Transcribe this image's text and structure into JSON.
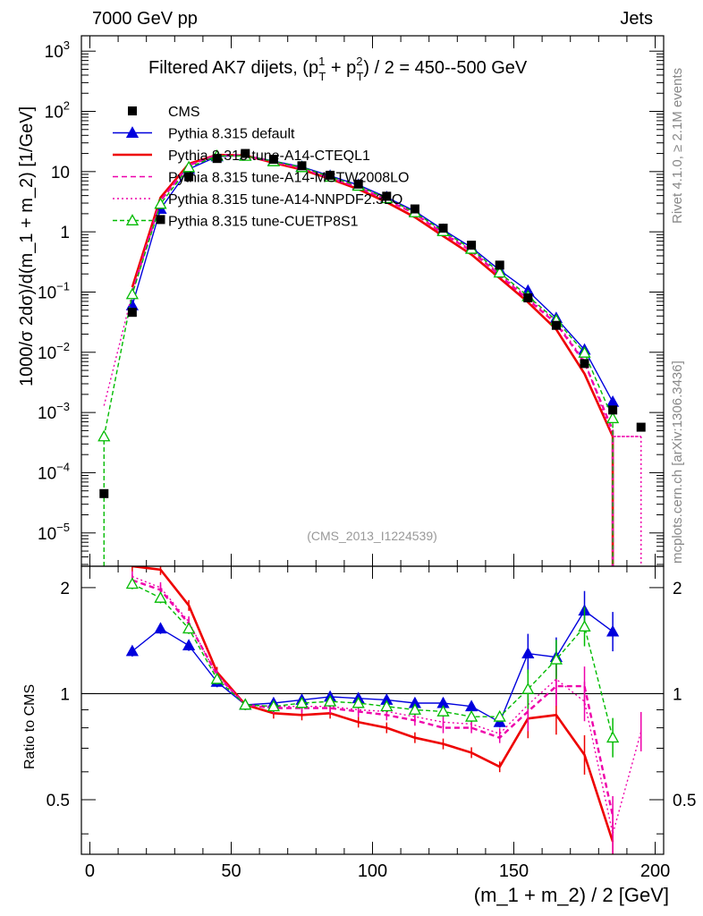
{
  "header": {
    "left": "7000 GeV pp",
    "right": "Jets"
  },
  "side_labels": {
    "top": "Rivet 4.1.0, ≥ 2.1M events",
    "bottom": "mcplots.cern.ch [arXiv:1306.3436]"
  },
  "watermark": "(CMS_2013_I1224539)",
  "chart_data": {
    "type": "line",
    "title": "Filtered AK7 dijets, (p_T^1 + p_T^2) / 2 = 450--500 GeV",
    "title_parts": {
      "pre": "Filtered AK7 dijets, (p",
      "sub1": "T",
      "sup1": "1",
      "mid": " + p",
      "sub2": "T",
      "sup2": "2",
      "post": ") / 2 = 450--500 GeV"
    },
    "xlabel": "(m_1 + m_2) / 2 [GeV]",
    "ylabel": "1000/σ   2dσ)/d(m_1 + m_2) [1/GeV]",
    "ratio_ylabel": "Ratio to CMS",
    "xlim": [
      -3,
      203
    ],
    "ylim_log": [
      2.8e-06,
      1800.0
    ],
    "ratio_ylim": [
      0.35,
      2.3
    ],
    "x_ticks": [
      0,
      50,
      100,
      150,
      200
    ],
    "x_tick_labels": [
      "0",
      "50",
      "100",
      "150",
      "200"
    ],
    "y_ticks": [
      {
        "v": 1000.0,
        "base": "10",
        "exp": "3"
      },
      {
        "v": 100.0,
        "base": "10",
        "exp": "2"
      },
      {
        "v": 10,
        "base": "10",
        "exp": ""
      },
      {
        "v": 1,
        "base": "1",
        "exp": ""
      },
      {
        "v": 0.1,
        "base": "10",
        "exp": "−1"
      },
      {
        "v": 0.01,
        "base": "10",
        "exp": "−2"
      },
      {
        "v": 0.001,
        "base": "10",
        "exp": "−3"
      },
      {
        "v": 0.0001,
        "base": "10",
        "exp": "−4"
      },
      {
        "v": 1e-05,
        "base": "10",
        "exp": "−5"
      }
    ],
    "ratio_ticks": [
      0.5,
      1,
      2
    ],
    "ratio_tick_labels": [
      "0.5",
      "1",
      "2"
    ],
    "x": [
      5,
      15,
      25,
      35,
      45,
      55,
      65,
      75,
      85,
      95,
      105,
      115,
      125,
      135,
      145,
      155,
      165,
      175,
      185,
      195
    ],
    "data": {
      "name": "CMS",
      "values": [
        4.5e-05,
        0.046,
        1.6,
        8.2,
        16.5,
        20,
        16,
        12.5,
        8.7,
        6.2,
        3.9,
        2.4,
        1.15,
        0.6,
        0.28,
        0.08,
        0.028,
        0.0065,
        0.0011,
        0.00057
      ]
    },
    "series": [
      {
        "name": "Pythia 8.315 default",
        "color": "#0000dd",
        "dash": "",
        "marker": "triangle-filled",
        "values": [
          null,
          0.06,
          2.4,
          11.0,
          17.8,
          18.5,
          15.0,
          12.0,
          8.5,
          6.0,
          3.75,
          2.2,
          1.08,
          0.55,
          0.23,
          0.105,
          0.037,
          0.011,
          0.0015,
          null
        ],
        "ratio_x": [
          15,
          25,
          35,
          45,
          55,
          65,
          75,
          85,
          95,
          105,
          115,
          125,
          135,
          145,
          155,
          165,
          175,
          185
        ],
        "ratio": [
          1.32,
          1.53,
          1.37,
          1.08,
          0.93,
          0.94,
          0.96,
          0.98,
          0.97,
          0.96,
          0.94,
          0.94,
          0.92,
          0.83,
          1.3,
          1.27,
          1.72,
          1.5
        ]
      },
      {
        "name": "Pythia 8.315 tune-A14-CTEQL1",
        "color": "#ee0000",
        "dash": "",
        "marker": "none",
        "values": [
          null,
          0.12,
          3.7,
          13.5,
          19.0,
          18.5,
          14.0,
          10.8,
          7.6,
          5.1,
          3.1,
          1.75,
          0.85,
          0.42,
          0.17,
          0.068,
          0.024,
          0.0044,
          0.0004,
          null
        ],
        "ratio_x": [
          15,
          25,
          35,
          45,
          55,
          65,
          75,
          85,
          95,
          105,
          115,
          125,
          135,
          145,
          155,
          165,
          175,
          185
        ],
        "ratio": [
          2.6,
          2.25,
          1.78,
          1.15,
          0.93,
          0.88,
          0.87,
          0.88,
          0.83,
          0.8,
          0.75,
          0.72,
          0.68,
          0.62,
          0.85,
          0.87,
          0.67,
          0.38
        ]
      },
      {
        "name": "Pythia 8.315 tune-A14-MSTW2008LO",
        "color": "#ee00aa",
        "dash": "6,4",
        "marker": "none",
        "values": [
          null,
          0.1,
          3.3,
          12.8,
          18.8,
          18.5,
          14.5,
          11.3,
          7.8,
          5.5,
          3.4,
          2.0,
          0.93,
          0.48,
          0.19,
          0.075,
          0.03,
          0.0068,
          0.0005,
          null
        ],
        "ratio_x": [
          15,
          25,
          35,
          45,
          55,
          65,
          75,
          85,
          95,
          105,
          115,
          125,
          135,
          145,
          155,
          165,
          175,
          185
        ],
        "ratio": [
          2.1,
          1.97,
          1.58,
          1.13,
          0.93,
          0.91,
          0.91,
          0.91,
          0.89,
          0.87,
          0.84,
          0.8,
          0.8,
          0.75,
          0.89,
          1.05,
          1.05,
          0.45
        ]
      },
      {
        "name": "Pythia 8.315 tune-A14-NNPDF2.3LO",
        "color": "#ee00aa",
        "dash": "2,3",
        "marker": "none",
        "values": [
          0.0013,
          0.095,
          3.2,
          12.6,
          18.9,
          18.4,
          14.6,
          11.4,
          8.0,
          5.6,
          3.5,
          2.05,
          0.97,
          0.5,
          0.2,
          0.08,
          0.032,
          0.0072,
          0.0004,
          0.0004
        ],
        "ratio_x": [
          15,
          25,
          35,
          45,
          55,
          65,
          75,
          85,
          95,
          105,
          115,
          125,
          135,
          145,
          155,
          165,
          175,
          185,
          195
        ],
        "ratio": [
          2.15,
          2.0,
          1.6,
          1.12,
          0.93,
          0.92,
          0.92,
          0.92,
          0.9,
          0.89,
          0.86,
          0.83,
          0.82,
          0.77,
          0.93,
          1.1,
          0.95,
          0.4,
          0.78
        ]
      },
      {
        "name": "Pythia 8.315 tune-CUETP8S1",
        "color": "#00bb00",
        "dash": "5,3",
        "marker": "triangle-open",
        "values": [
          0.0004,
          0.092,
          2.9,
          11.8,
          18.2,
          18.2,
          14.8,
          11.8,
          8.2,
          5.8,
          3.6,
          2.1,
          1.02,
          0.52,
          0.21,
          0.085,
          0.034,
          0.0098,
          0.0008,
          null
        ],
        "ratio_x": [
          15,
          25,
          35,
          45,
          55,
          65,
          75,
          85,
          95,
          105,
          115,
          125,
          135,
          145,
          155,
          165,
          175,
          185
        ],
        "ratio": [
          2.05,
          1.87,
          1.53,
          1.1,
          0.93,
          0.92,
          0.94,
          0.95,
          0.94,
          0.92,
          0.9,
          0.89,
          0.86,
          0.86,
          1.03,
          1.25,
          1.55,
          0.75
        ]
      }
    ]
  }
}
